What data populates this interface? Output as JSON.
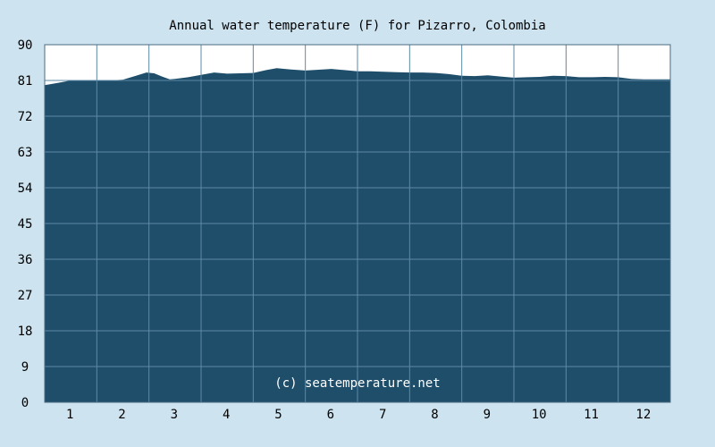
{
  "chart_data": {
    "type": "area",
    "title": "Annual water temperature (F) for Pizarro, Colombia",
    "watermark": "(c) seatemperature.net",
    "xlabel": "",
    "ylabel": "",
    "ylim": [
      0,
      90
    ],
    "y_ticks": [
      "0",
      "9",
      "18",
      "27",
      "36",
      "45",
      "54",
      "63",
      "72",
      "81",
      "90"
    ],
    "x_ticks": [
      "1",
      "2",
      "3",
      "4",
      "5",
      "6",
      "7",
      "8",
      "9",
      "10",
      "11",
      "12"
    ],
    "grid": true,
    "colors": {
      "background": "#cde3ef",
      "plot_bg": "#ffffff",
      "fill": "#1f4e6b",
      "grid": "#5d8aa4"
    },
    "series": [
      {
        "x": [
          0.5,
          0.75,
          1.0,
          1.25,
          1.5,
          1.75,
          2.0,
          2.25,
          2.45,
          2.6,
          2.75,
          2.9,
          3.0,
          3.25,
          3.5,
          3.75,
          4.0,
          4.25,
          4.5,
          4.75,
          4.95,
          5.2,
          5.5,
          5.75,
          6.0,
          6.25,
          6.5,
          6.75,
          7.0,
          7.25,
          7.5,
          7.75,
          8.0,
          8.25,
          8.5,
          8.75,
          9.0,
          9.25,
          9.5,
          9.75,
          10.0,
          10.25,
          10.5,
          10.75,
          11.0,
          11.25,
          11.5,
          11.75,
          12.0,
          12.25,
          12.5
        ],
        "values": [
          79.8,
          80.4,
          81.0,
          81.1,
          80.9,
          81.0,
          81.2,
          82.2,
          83.0,
          82.8,
          82.0,
          81.3,
          81.4,
          81.8,
          82.4,
          83.0,
          82.7,
          82.8,
          82.9,
          83.6,
          84.1,
          83.8,
          83.5,
          83.7,
          83.9,
          83.6,
          83.3,
          83.3,
          83.2,
          83.1,
          83.0,
          83.0,
          82.9,
          82.6,
          82.2,
          82.1,
          82.3,
          82.0,
          81.7,
          81.8,
          81.9,
          82.2,
          82.1,
          81.8,
          81.8,
          81.9,
          81.8,
          81.4,
          81.3,
          81.3,
          81.3
        ]
      }
    ]
  }
}
